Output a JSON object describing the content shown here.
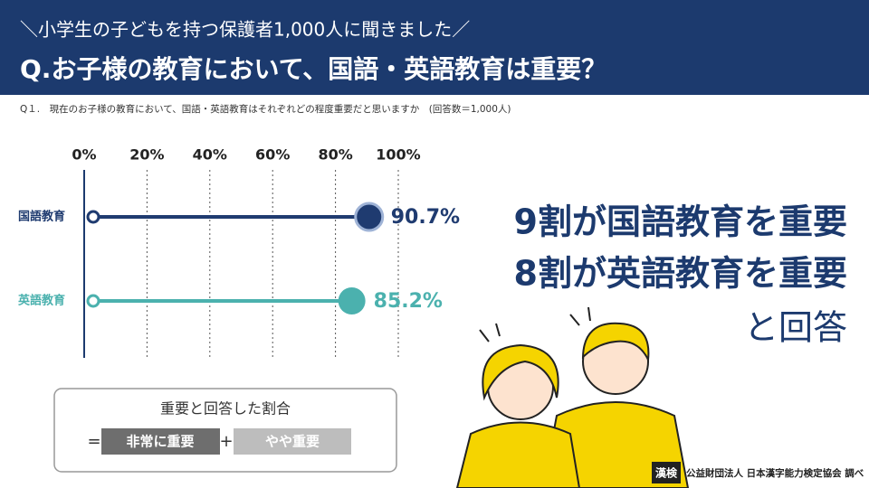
{
  "header": {
    "subtitle": "＼小学生の子どもを持つ保護者1,000人に聞きました／",
    "title": "Q.お子様の教育において、国語・英語教育は重要？"
  },
  "note": "Q１.　現在のお子様の教育において、国語・英語教育はそれぞれどの程度重要だと思いますか　(回答数＝1,000人)",
  "chart_data": {
    "type": "lollipop",
    "categories": [
      "国語教育",
      "英語教育"
    ],
    "values": [
      90.7,
      85.2
    ],
    "value_labels": [
      "90.7%",
      "85.2%"
    ],
    "colors": [
      "#1f3b70",
      "#4bb1ae"
    ],
    "xlim": [
      0,
      100
    ],
    "xticks": [
      {
        "value": 0,
        "label": "0%"
      },
      {
        "value": 20,
        "label": "20%"
      },
      {
        "value": 40,
        "label": "40%"
      },
      {
        "value": 60,
        "label": "60%"
      },
      {
        "value": 80,
        "label": "80%"
      },
      {
        "value": 100,
        "label": "100%"
      }
    ],
    "grid": true
  },
  "callout": [
    "9割が国語教育を重要",
    "8割が英語教育を重要",
    "と回答"
  ],
  "legend": {
    "title": "重要と回答した割合",
    "equals": "=",
    "very": "非常に重要",
    "plus": "+",
    "somewhat": "やや重要"
  },
  "footer": {
    "logo": "漢検",
    "source": "公益財団法人 日本漢字能力検定協会 調べ"
  }
}
